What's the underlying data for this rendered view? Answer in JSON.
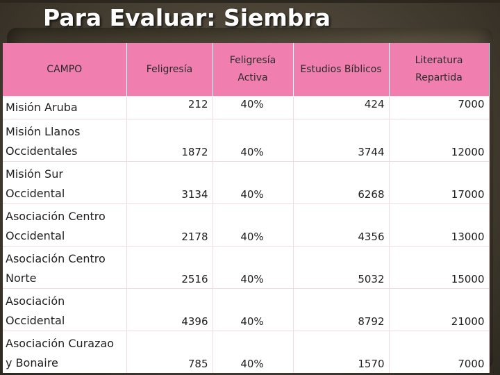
{
  "title": "Para Evaluar: Siembra",
  "table": {
    "headers": [
      "CAMPO",
      "Feligresía",
      "Feligresía Activa",
      "Estudios Bíblicos",
      "Literatura Repartida"
    ],
    "rows": [
      [
        "Misión Aruba",
        "212",
        "40%",
        "424",
        "7000"
      ],
      [
        "Misión Llanos Occidentales",
        "1872",
        "40%",
        "3744",
        "12000"
      ],
      [
        "Misión Sur Occidental",
        "3134",
        "40%",
        "6268",
        "17000"
      ],
      [
        "Asociación Centro Occidental",
        "2178",
        "40%",
        "4356",
        "13000"
      ],
      [
        "Asociación Centro Norte",
        "2516",
        "40%",
        "5032",
        "15000"
      ],
      [
        "Asociación Occidental",
        "4396",
        "40%",
        "8792",
        "21000"
      ],
      [
        "Asociación Curazao y Bonaire",
        "785",
        "40%",
        "1570",
        "7000"
      ]
    ]
  },
  "colors": {
    "header_bg": "#f07fb0",
    "title_text": "#ffffff"
  }
}
